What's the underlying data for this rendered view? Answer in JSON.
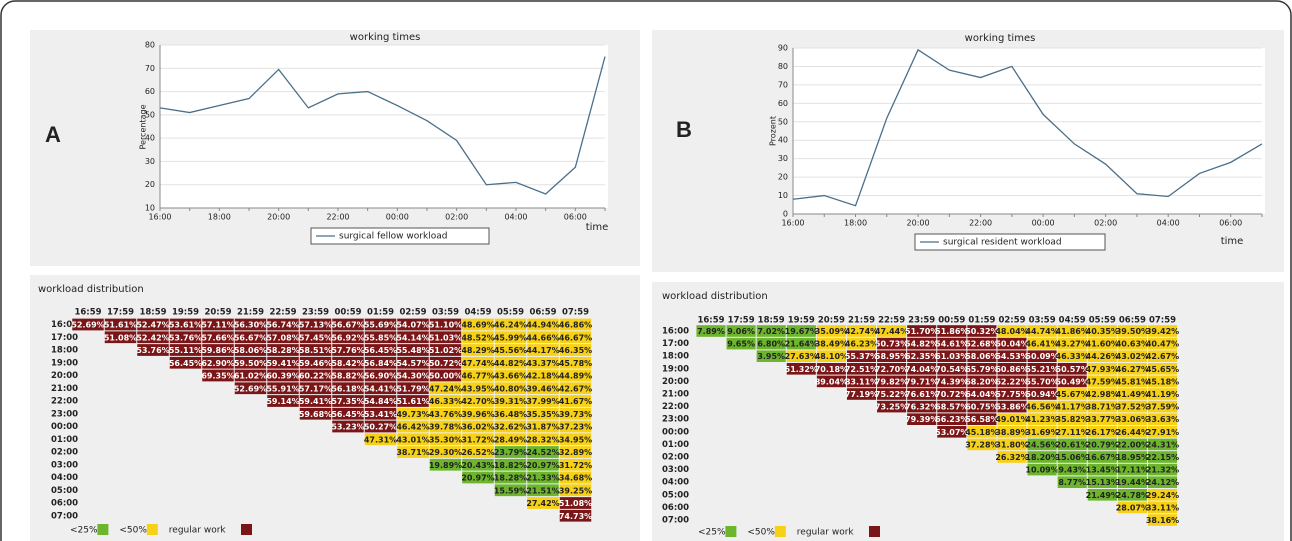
{
  "chart_data": [
    {
      "type": "line",
      "label": "A",
      "title": "working times",
      "y_label": "Percentage",
      "x_label": "time",
      "categories": [
        "16:00",
        null,
        "18:00",
        null,
        "20:00",
        null,
        "22:00",
        null,
        "00:00",
        null,
        "02:00",
        null,
        "04:00",
        null,
        "06:00",
        null
      ],
      "series": [
        {
          "name": "surgical fellow workload",
          "color": "#4a6f8a",
          "values": [
            53,
            51,
            54,
            57,
            69.5,
            53,
            59,
            60,
            54,
            47.5,
            39,
            20,
            21,
            16,
            27.5,
            75
          ]
        }
      ],
      "ylim": [
        10,
        80
      ],
      "yticks": [
        10,
        20,
        30,
        40,
        50,
        60,
        70,
        80
      ],
      "grid": true
    },
    {
      "type": "line",
      "label": "B",
      "title": "working times",
      "y_label": "Prozent",
      "x_label": "time",
      "categories": [
        "16:00",
        null,
        "18:00",
        null,
        "20:00",
        null,
        "22:00",
        null,
        "00:00",
        null,
        "02:00",
        null,
        "04:00",
        null,
        "06:00",
        null
      ],
      "series": [
        {
          "name": "surgical resident workload",
          "color": "#4a6f8a",
          "values": [
            8,
            10,
            4.5,
            52,
            89,
            78,
            74,
            80,
            54,
            38,
            27,
            11,
            9.5,
            22,
            28,
            38
          ]
        }
      ],
      "ylim": [
        0,
        90
      ],
      "yticks": [
        0,
        10,
        20,
        30,
        40,
        50,
        60,
        70,
        80,
        90
      ],
      "grid": true
    }
  ],
  "tables": [
    {
      "title": "workload distribution",
      "columns": [
        "16:59",
        "17:59",
        "18:59",
        "19:59",
        "20:59",
        "21:59",
        "22:59",
        "23:59",
        "00:59",
        "01:59",
        "02:59",
        "03:59",
        "04:59",
        "05:59",
        "06:59",
        "07:59"
      ],
      "rows": [
        {
          "label": "16:00",
          "cells": [
            "52.69%",
            "51.61%",
            "52.47%",
            "53.61%",
            "57.11%",
            "56.30%",
            "56.74%",
            "57.13%",
            "56.67%",
            "55.69%",
            "54.07%",
            "51.10%",
            "48.69%",
            "46.24%",
            "44.94%",
            "46.86%"
          ]
        },
        {
          "label": "17:00",
          "cells": [
            "51.08%",
            "52.42%",
            "53.76%",
            "57.66%",
            "56.67%",
            "57.08%",
            "57.45%",
            "56.92%",
            "55.85%",
            "54.14%",
            "51.03%",
            "48.52%",
            "45.99%",
            "44.66%",
            "46.67%"
          ]
        },
        {
          "label": "18:00",
          "cells": [
            "53.76%",
            "55.11%",
            "59.86%",
            "58.06%",
            "58.28%",
            "58.51%",
            "57.76%",
            "56.45%",
            "55.48%",
            "51.02%",
            "48.29%",
            "45.56%",
            "44.17%",
            "46.35%"
          ]
        },
        {
          "label": "19:00",
          "cells": [
            "56.45%",
            "62.90%",
            "59.50%",
            "59.41%",
            "59.46%",
            "58.42%",
            "56.84%",
            "54.57%",
            "50.72%",
            "47.74%",
            "44.82%",
            "43.37%",
            "45.78%"
          ]
        },
        {
          "label": "20:00",
          "cells": [
            "69.35%",
            "61.02%",
            "60.39%",
            "60.22%",
            "58.82%",
            "56.90%",
            "54.30%",
            "50.00%",
            "46.77%",
            "43.66%",
            "42.18%",
            "44.89%"
          ]
        },
        {
          "label": "21:00",
          "cells": [
            "52.69%",
            "55.91%",
            "57.17%",
            "56.18%",
            "54.41%",
            "51.79%",
            "47.24%",
            "43.95%",
            "40.80%",
            "39.46%",
            "42.67%"
          ]
        },
        {
          "label": "22:00",
          "cells": [
            "59.14%",
            "59.41%",
            "57.35%",
            "54.84%",
            "51.61%",
            "46.33%",
            "42.70%",
            "39.31%",
            "37.99%",
            "41.67%"
          ]
        },
        {
          "label": "23:00",
          "cells": [
            "59.68%",
            "56.45%",
            "53.41%",
            "49.73%",
            "43.76%",
            "39.96%",
            "36.48%",
            "35.35%",
            "39.73%"
          ]
        },
        {
          "label": "00:00",
          "cells": [
            "53.23%",
            "50.27%",
            "46.42%",
            "39.78%",
            "36.02%",
            "32.62%",
            "31.87%",
            "37.23%"
          ]
        },
        {
          "label": "01:00",
          "cells": [
            "47.31%",
            "43.01%",
            "35.30%",
            "31.72%",
            "28.49%",
            "28.32%",
            "34.95%"
          ]
        },
        {
          "label": "02:00",
          "cells": [
            "38.71%",
            "29.30%",
            "26.52%",
            "23.79%",
            "24.52%",
            "32.89%"
          ]
        },
        {
          "label": "03:00",
          "cells": [
            "19.89%",
            "20.43%",
            "18.82%",
            "20.97%",
            "31.72%"
          ]
        },
        {
          "label": "04:00",
          "cells": [
            "20.97%",
            "18.28%",
            "21.33%",
            "34.68%"
          ]
        },
        {
          "label": "05:00",
          "cells": [
            "15.59%",
            "21.51%",
            "39.25%"
          ]
        },
        {
          "label": "06:00",
          "cells": [
            "27.42%",
            "51.08%"
          ]
        },
        {
          "label": "07:00",
          "cells": [
            "74.73%"
          ]
        }
      ],
      "legend": [
        {
          "label": "<25%",
          "color": "#6cb52d",
          "below": 25
        },
        {
          "label": "<50%",
          "color": "#f7d117",
          "below": 50
        },
        {
          "label": "regular work",
          "color": "#7b1618"
        }
      ]
    },
    {
      "title": "workload distribution",
      "columns": [
        "16:59",
        "17:59",
        "18:59",
        "19:59",
        "20:59",
        "21:59",
        "22:59",
        "23:59",
        "00:59",
        "01:59",
        "02:59",
        "03:59",
        "04:59",
        "05:59",
        "06:59",
        "07:59"
      ],
      "rows": [
        {
          "label": "16:00",
          "cells": [
            "7.89%",
            "9.06%",
            "7.02%",
            "19.67%",
            "35.09%",
            "42.74%",
            "47.44%",
            "51.70%",
            "51.86%",
            "50.32%",
            "48.04%",
            "44.74%",
            "41.86%",
            "40.35%",
            "39.50%",
            "39.42%"
          ]
        },
        {
          "label": "17:00",
          "cells": [
            "9.65%",
            "6.80%",
            "21.64%",
            "38.49%",
            "46.23%",
            "50.73%",
            "54.82%",
            "54.61%",
            "52.68%",
            "50.04%",
            "46.41%",
            "43.27%",
            "41.60%",
            "40.63%",
            "40.47%"
          ]
        },
        {
          "label": "18:00",
          "cells": [
            "3.95%",
            "27.63%",
            "48.10%",
            "55.37%",
            "58.95%",
            "62.35%",
            "61.03%",
            "58.06%",
            "54.53%",
            "50.09%",
            "46.33%",
            "44.26%",
            "43.02%",
            "42.67%"
          ]
        },
        {
          "label": "19:00",
          "cells": [
            "51.32%",
            "70.18%",
            "72.51%",
            "72.70%",
            "74.04%",
            "70.54%",
            "65.79%",
            "60.86%",
            "55.21%",
            "50.57%",
            "47.93%",
            "46.27%",
            "45.65%"
          ]
        },
        {
          "label": "20:00",
          "cells": [
            "89.04%",
            "83.11%",
            "79.82%",
            "79.71%",
            "74.39%",
            "68.20%",
            "62.22%",
            "55.70%",
            "50.49%",
            "47.59%",
            "45.81%",
            "45.18%"
          ]
        },
        {
          "label": "21:00",
          "cells": [
            "77.19%",
            "75.22%",
            "76.61%",
            "70.72%",
            "64.04%",
            "57.75%",
            "50.94%",
            "45.67%",
            "42.98%",
            "41.49%",
            "41.19%"
          ]
        },
        {
          "label": "22:00",
          "cells": [
            "73.25%",
            "76.32%",
            "68.57%",
            "60.75%",
            "53.86%",
            "46.56%",
            "41.17%",
            "38.71%",
            "37.52%",
            "37.59%"
          ]
        },
        {
          "label": "23:00",
          "cells": [
            "79.39%",
            "66.23%",
            "56.58%",
            "49.01%",
            "41.23%",
            "35.82%",
            "33.77%",
            "33.06%",
            "33.63%"
          ]
        },
        {
          "label": "00:00",
          "cells": [
            "53.07%",
            "45.18%",
            "38.89%",
            "31.69%",
            "27.11%",
            "26.17%",
            "26.44%",
            "27.91%"
          ]
        },
        {
          "label": "01:00",
          "cells": [
            "37.28%",
            "31.80%",
            "24.56%",
            "20.61%",
            "20.79%",
            "22.00%",
            "24.31%"
          ]
        },
        {
          "label": "02:00",
          "cells": [
            "26.32%",
            "18.20%",
            "15.06%",
            "16.67%",
            "18.95%",
            "22.15%"
          ]
        },
        {
          "label": "03:00",
          "cells": [
            "10.09%",
            "9.43%",
            "13.45%",
            "17.11%",
            "21.32%"
          ]
        },
        {
          "label": "04:00",
          "cells": [
            "8.77%",
            "15.13%",
            "19.44%",
            "24.12%"
          ]
        },
        {
          "label": "05:00",
          "cells": [
            "21.49%",
            "24.78%",
            "29.24%"
          ]
        },
        {
          "label": "06:00",
          "cells": [
            "28.07%",
            "33.11%"
          ]
        },
        {
          "label": "07:00",
          "cells": [
            "38.16%"
          ]
        }
      ],
      "legend": [
        {
          "label": "<25%",
          "color": "#6cb52d",
          "below": 25
        },
        {
          "label": "<50%",
          "color": "#f7d117",
          "below": 50
        },
        {
          "label": "regular work",
          "color": "#7b1618"
        }
      ]
    }
  ]
}
